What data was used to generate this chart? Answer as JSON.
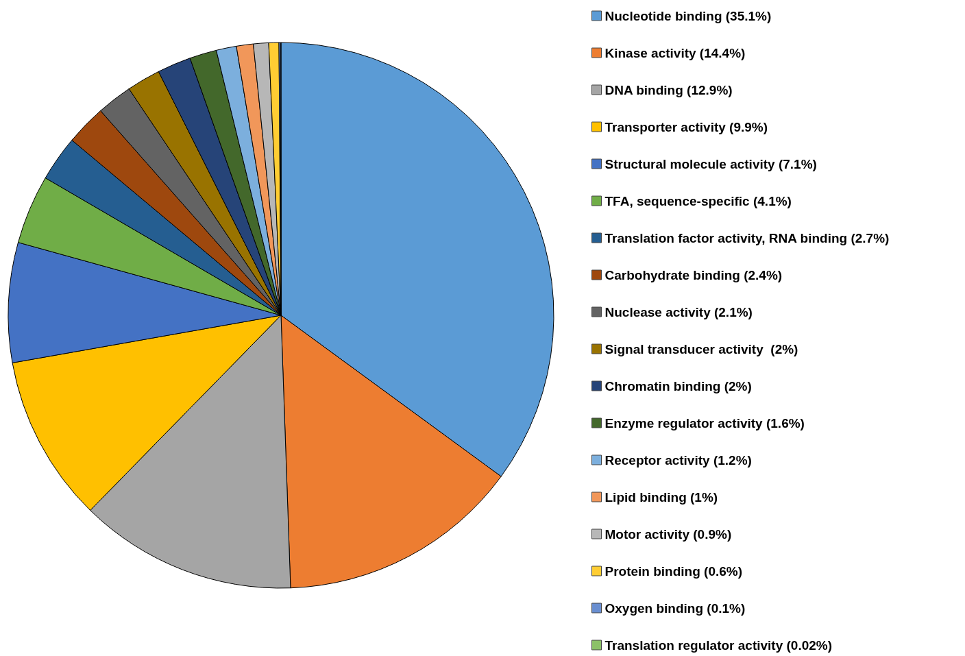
{
  "chart_data": {
    "type": "pie",
    "categories": [
      "Nucleotide binding (35.1%)",
      "Kinase activity (14.4%)",
      "DNA binding (12.9%)",
      "Transporter activity (9.9%)",
      "Structural molecule activity (7.1%)",
      "TFA, sequence-specific (4.1%)",
      "Translation factor activity, RNA binding (2.7%)",
      "Carbohydrate binding (2.4%)",
      "Nuclease activity (2.1%)",
      "Signal transducer activity  (2%)",
      "Chromatin binding (2%)",
      "Enzyme regulator activity (1.6%)",
      "Receptor activity (1.2%)",
      "Lipid binding (1%)",
      "Motor activity (0.9%)",
      "Protein binding (0.6%)",
      "Oxygen binding (0.1%)",
      "Translation regulator activity (0.02%)"
    ],
    "values": [
      35.1,
      14.4,
      12.9,
      9.9,
      7.1,
      4.1,
      2.7,
      2.4,
      2.1,
      2,
      2,
      1.6,
      1.2,
      1,
      0.9,
      0.6,
      0.1,
      0.02
    ],
    "colors": [
      "#5b9bd5",
      "#ed7d31",
      "#a5a5a5",
      "#ffc000",
      "#4472c4",
      "#70ad47",
      "#255e91",
      "#9e480e",
      "#636363",
      "#997300",
      "#264478",
      "#43682b",
      "#7cafdd",
      "#f1975a",
      "#b7b7b7",
      "#ffcd33",
      "#698ed0",
      "#8cc168"
    ],
    "legend": "right"
  }
}
